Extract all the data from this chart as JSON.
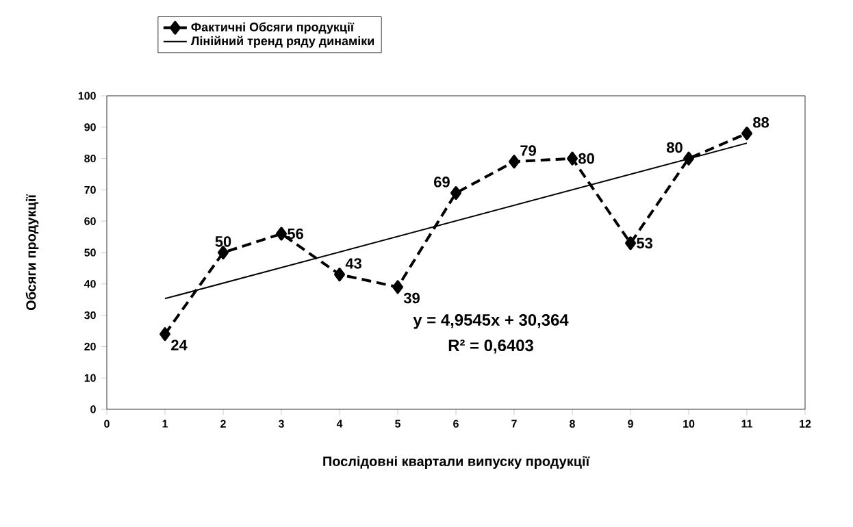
{
  "chart_data": {
    "type": "line",
    "xlabel": "Послідовні квартали випуску продукції",
    "ylabel": "Обсяги продукції",
    "x": [
      1,
      2,
      3,
      4,
      5,
      6,
      7,
      8,
      9,
      10,
      11
    ],
    "series": [
      {
        "name": "Фактичні Обсяги продукції",
        "color": "#000000",
        "marker": "diamond",
        "line_style": "dashed",
        "values": [
          24,
          50,
          56,
          43,
          39,
          69,
          79,
          80,
          53,
          80,
          88
        ],
        "value_labels": [
          "24",
          "50",
          "56",
          "43",
          "39",
          "69",
          "79",
          "80",
          "53",
          "80",
          "88"
        ]
      },
      {
        "name": "Лінійний тренд ряду динаміки",
        "type": "line",
        "color": "#000000",
        "marker": "none",
        "line_style": "solid",
        "x": [
          1,
          11
        ],
        "values": [
          35.3,
          84.9
        ]
      }
    ],
    "annotations": [
      "y = 4,9545x + 30,364",
      "R² = 0,6403"
    ],
    "xlim": [
      0,
      12
    ],
    "xticks": [
      0,
      1,
      2,
      3,
      4,
      5,
      6,
      7,
      8,
      9,
      10,
      11,
      12
    ],
    "ylim": [
      0,
      100
    ],
    "yticks": [
      0,
      10,
      20,
      30,
      40,
      50,
      60,
      70,
      80,
      90,
      100
    ],
    "grid": false,
    "legend": "top"
  }
}
